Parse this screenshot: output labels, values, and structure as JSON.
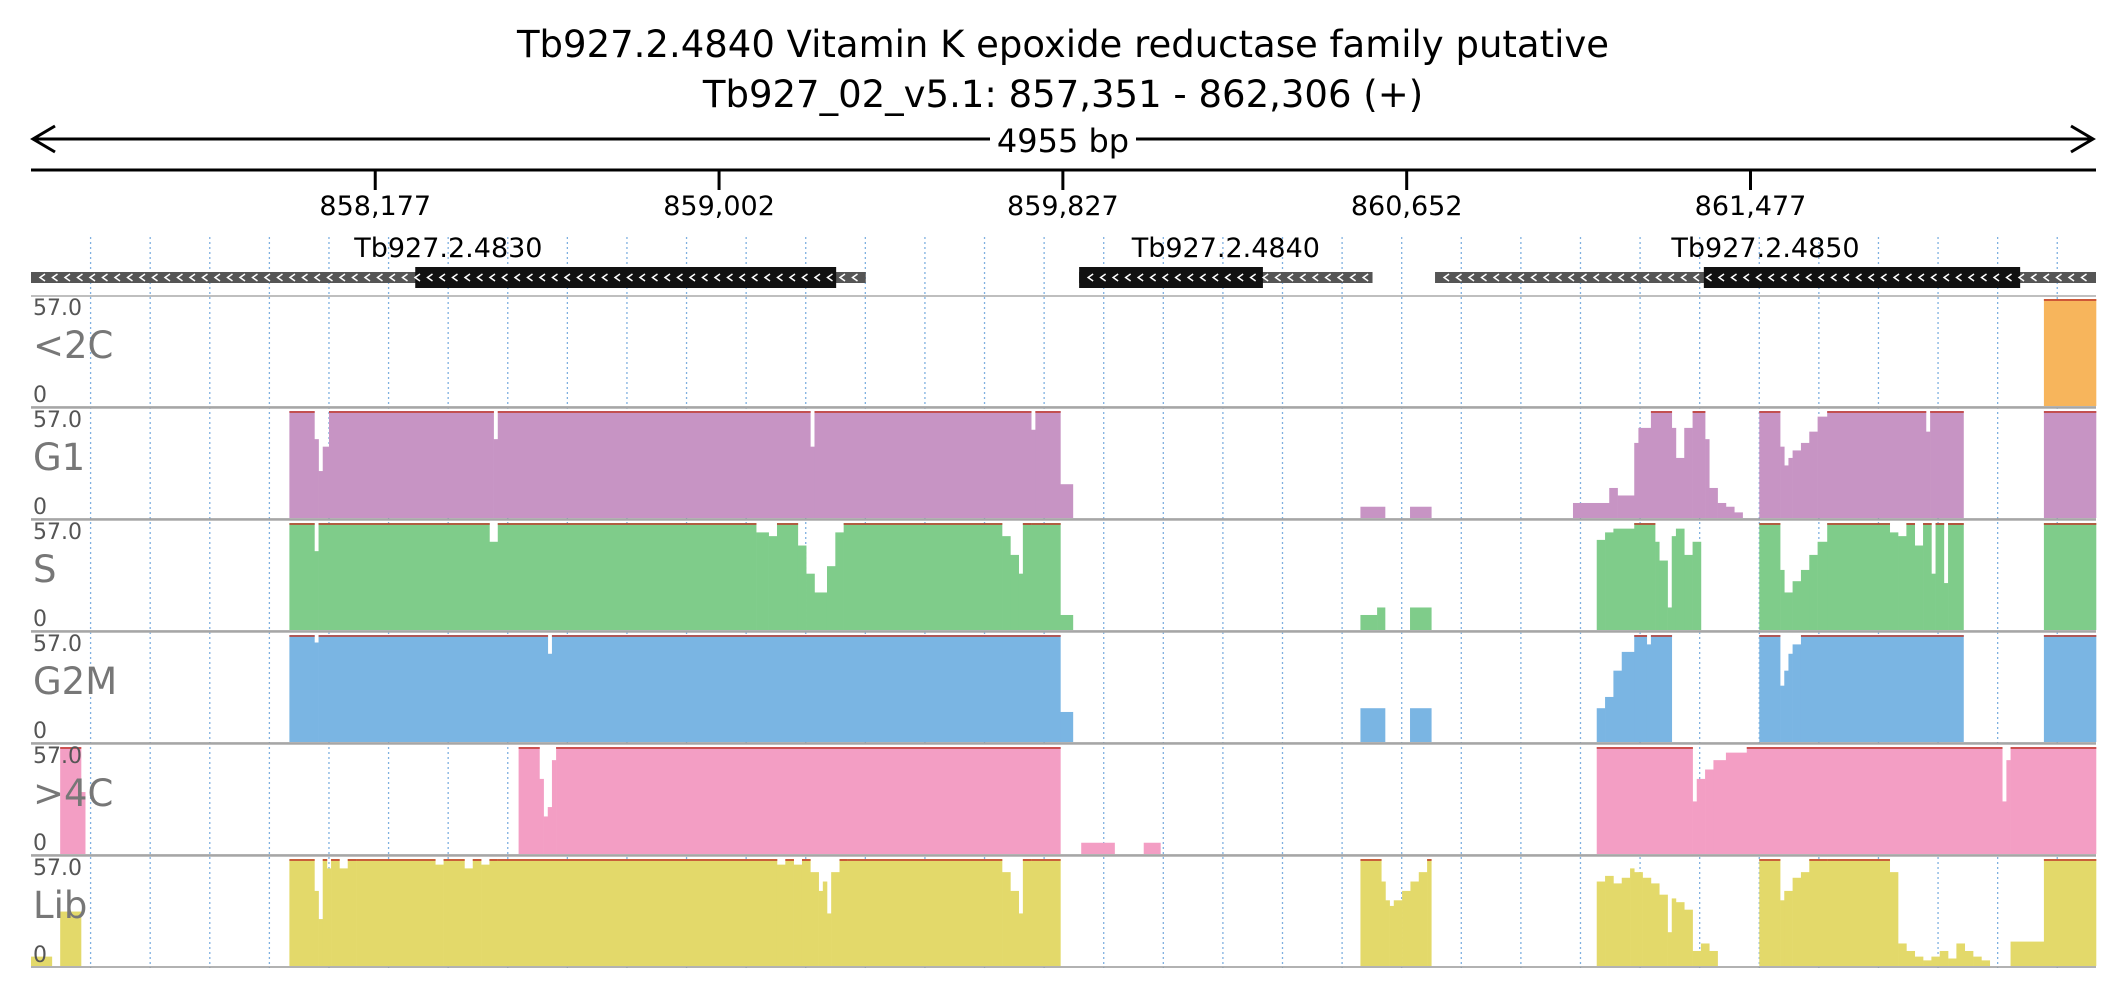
{
  "title": "Tb927.2.4840  Vitamin K epoxide reductase family  putative",
  "subtitle": "Tb927_02_v5.1: 857,351 - 862,306 (+)",
  "span_label": "4955 bp",
  "chart_data": {
    "type": "area",
    "xlim": [
      857351,
      862306
    ],
    "ticks": [
      858177,
      859002,
      859827,
      860652,
      861477
    ],
    "tick_labels": [
      "858,177",
      "859,002",
      "859,827",
      "860,652",
      "861,477"
    ],
    "gridlines": [
      857494,
      857637,
      857780,
      857923,
      858066,
      858209,
      858352,
      858495,
      858638,
      858781,
      858924,
      859067,
      859210,
      859353,
      859496,
      859639,
      859782,
      859925,
      860068,
      860211,
      860354,
      860497,
      860640,
      860783,
      860926,
      861069,
      861212,
      861355,
      861498,
      861641,
      861784,
      861927,
      862070,
      862213
    ],
    "genes": [
      {
        "name": "Tb927.2.4830",
        "start": 857351,
        "end": 859354,
        "cds_start": 858273,
        "cds_end": 859283,
        "strand": "-"
      },
      {
        "name": "Tb927.2.4840",
        "start": 859866,
        "end": 860570,
        "cds_start": 859866,
        "cds_end": 860307,
        "strand": "-"
      },
      {
        "name": "Tb927.2.4850",
        "start": 860720,
        "end": 862306,
        "cds_start": 861365,
        "cds_end": 862124,
        "strand": "-"
      }
    ],
    "y_max_label": "57.0",
    "y_min_label": "0",
    "ylim": [
      0,
      57.0
    ],
    "series": [
      {
        "name": "<2C",
        "color": "#f7b55c",
        "segments": [
          [
            862181,
            862306,
            57
          ]
        ]
      },
      {
        "name": "G1",
        "color": "#c794c4",
        "segments": [
          [
            857971,
            858031,
            57
          ],
          [
            858031,
            858041,
            42
          ],
          [
            858041,
            858051,
            25
          ],
          [
            858051,
            858066,
            38
          ],
          [
            858066,
            858461,
            57
          ],
          [
            858461,
            858471,
            42
          ],
          [
            858471,
            859221,
            57
          ],
          [
            859221,
            859231,
            38
          ],
          [
            859231,
            859751,
            57
          ],
          [
            859751,
            859761,
            47
          ],
          [
            859761,
            859821,
            57
          ],
          [
            859821,
            859851,
            18
          ],
          [
            860541,
            860600,
            6
          ],
          [
            860660,
            860711,
            6
          ],
          [
            861051,
            861138,
            8
          ],
          [
            861138,
            861158,
            16
          ],
          [
            861158,
            861198,
            12
          ],
          [
            861198,
            861208,
            40
          ],
          [
            861208,
            861238,
            48
          ],
          [
            861238,
            861288,
            57
          ],
          [
            861288,
            861298,
            48
          ],
          [
            861298,
            861318,
            32
          ],
          [
            861318,
            861338,
            48
          ],
          [
            861338,
            861368,
            57
          ],
          [
            861368,
            861378,
            42
          ],
          [
            861378,
            861398,
            16
          ],
          [
            861398,
            861418,
            8
          ],
          [
            861418,
            861438,
            6
          ],
          [
            861438,
            861458,
            3
          ],
          [
            861498,
            861548,
            57
          ],
          [
            861548,
            861558,
            38
          ],
          [
            861558,
            861568,
            28
          ],
          [
            861568,
            861578,
            32
          ],
          [
            861578,
            861598,
            36
          ],
          [
            861598,
            861618,
            40
          ],
          [
            861618,
            861638,
            46
          ],
          [
            861638,
            861661,
            54
          ],
          [
            861661,
            861898,
            57
          ],
          [
            861898,
            861908,
            46
          ],
          [
            861908,
            861988,
            57
          ],
          [
            862181,
            862306,
            57
          ]
        ]
      },
      {
        "name": "S",
        "color": "#7fcc8a",
        "segments": [
          [
            857971,
            858031,
            57
          ],
          [
            858031,
            858041,
            42
          ],
          [
            858041,
            858451,
            57
          ],
          [
            858451,
            858471,
            47
          ],
          [
            858471,
            859091,
            57
          ],
          [
            859091,
            859121,
            52
          ],
          [
            859121,
            859141,
            50
          ],
          [
            859141,
            859191,
            57
          ],
          [
            859191,
            859211,
            45
          ],
          [
            859211,
            859231,
            30
          ],
          [
            859231,
            859261,
            20
          ],
          [
            859261,
            859281,
            34
          ],
          [
            859281,
            859301,
            52
          ],
          [
            859301,
            859681,
            57
          ],
          [
            859681,
            859701,
            50
          ],
          [
            859701,
            859721,
            40
          ],
          [
            859721,
            859731,
            30
          ],
          [
            859731,
            859751,
            57
          ],
          [
            859751,
            859821,
            57
          ],
          [
            859821,
            859851,
            8
          ],
          [
            860541,
            860581,
            8
          ],
          [
            860581,
            860600,
            12
          ],
          [
            860660,
            860711,
            12
          ],
          [
            861108,
            861128,
            48
          ],
          [
            861128,
            861148,
            52
          ],
          [
            861148,
            861198,
            54
          ],
          [
            861198,
            861248,
            57
          ],
          [
            861248,
            861258,
            47
          ],
          [
            861258,
            861278,
            37
          ],
          [
            861278,
            861288,
            12
          ],
          [
            861288,
            861298,
            50
          ],
          [
            861298,
            861318,
            54
          ],
          [
            861318,
            861338,
            40
          ],
          [
            861338,
            861358,
            47
          ],
          [
            861498,
            861548,
            57
          ],
          [
            861548,
            861558,
            32
          ],
          [
            861558,
            861578,
            20
          ],
          [
            861578,
            861598,
            26
          ],
          [
            861598,
            861618,
            32
          ],
          [
            861618,
            861638,
            40
          ],
          [
            861638,
            861661,
            47
          ],
          [
            861661,
            861811,
            57
          ],
          [
            861811,
            861831,
            52
          ],
          [
            861831,
            861851,
            50
          ],
          [
            861851,
            861871,
            57
          ],
          [
            861871,
            861891,
            45
          ],
          [
            861891,
            861911,
            57
          ],
          [
            861911,
            861921,
            30
          ],
          [
            861921,
            861941,
            57
          ],
          [
            861941,
            861951,
            25
          ],
          [
            861951,
            861988,
            57
          ],
          [
            862181,
            862306,
            57
          ]
        ]
      },
      {
        "name": "G2M",
        "color": "#7ab5e3",
        "segments": [
          [
            857971,
            858031,
            57
          ],
          [
            858031,
            858041,
            53
          ],
          [
            858041,
            858591,
            57
          ],
          [
            858591,
            858601,
            47
          ],
          [
            858601,
            859821,
            57
          ],
          [
            859821,
            859851,
            16
          ],
          [
            860541,
            860600,
            18
          ],
          [
            860660,
            860711,
            18
          ],
          [
            861108,
            861128,
            18
          ],
          [
            861128,
            861148,
            24
          ],
          [
            861148,
            861168,
            38
          ],
          [
            861168,
            861198,
            48
          ],
          [
            861198,
            861228,
            57
          ],
          [
            861228,
            861238,
            52
          ],
          [
            861238,
            861288,
            57
          ],
          [
            861498,
            861548,
            57
          ],
          [
            861548,
            861558,
            30
          ],
          [
            861558,
            861568,
            38
          ],
          [
            861568,
            861578,
            47
          ],
          [
            861578,
            861598,
            52
          ],
          [
            861598,
            861988,
            57
          ],
          [
            862181,
            862306,
            57
          ]
        ]
      },
      {
        "name": ">4C",
        "color": "#f39ec4",
        "segments": [
          [
            857421,
            857471,
            57
          ],
          [
            857471,
            857481,
            33
          ],
          [
            858521,
            858571,
            57
          ],
          [
            858571,
            858581,
            40
          ],
          [
            858581,
            858591,
            20
          ],
          [
            858591,
            858601,
            25
          ],
          [
            858601,
            858611,
            50
          ],
          [
            858611,
            859821,
            57
          ],
          [
            859871,
            859951,
            6
          ],
          [
            860021,
            860061,
            6
          ],
          [
            861108,
            861338,
            57
          ],
          [
            861338,
            861348,
            28
          ],
          [
            861348,
            861368,
            40
          ],
          [
            861368,
            861388,
            45
          ],
          [
            861388,
            861418,
            50
          ],
          [
            861418,
            861468,
            54
          ],
          [
            861468,
            862081,
            57
          ],
          [
            862081,
            862091,
            28
          ],
          [
            862091,
            862101,
            50
          ],
          [
            862101,
            862306,
            57
          ]
        ]
      },
      {
        "name": "Lib",
        "color": "#e3d96a",
        "segments": [
          [
            857351,
            857401,
            5
          ],
          [
            857421,
            857471,
            29
          ],
          [
            857971,
            858031,
            57
          ],
          [
            858031,
            858041,
            40
          ],
          [
            858041,
            858051,
            25
          ],
          [
            858051,
            858061,
            57
          ],
          [
            858061,
            858071,
            52
          ],
          [
            858071,
            858091,
            57
          ],
          [
            858091,
            858111,
            52
          ],
          [
            858111,
            858131,
            57
          ],
          [
            858131,
            858321,
            57
          ],
          [
            858321,
            858341,
            54
          ],
          [
            858341,
            858391,
            57
          ],
          [
            858391,
            858411,
            52
          ],
          [
            858411,
            858431,
            57
          ],
          [
            858431,
            858451,
            54
          ],
          [
            858451,
            858471,
            57
          ],
          [
            858471,
            859141,
            57
          ],
          [
            859141,
            859161,
            54
          ],
          [
            859161,
            859181,
            57
          ],
          [
            859181,
            859201,
            54
          ],
          [
            859201,
            859221,
            57
          ],
          [
            859221,
            859241,
            50
          ],
          [
            859241,
            859251,
            40
          ],
          [
            859251,
            859261,
            45
          ],
          [
            859261,
            859271,
            28
          ],
          [
            859271,
            859291,
            50
          ],
          [
            859291,
            859311,
            57
          ],
          [
            859311,
            859681,
            57
          ],
          [
            859681,
            859701,
            50
          ],
          [
            859701,
            859721,
            40
          ],
          [
            859721,
            859731,
            28
          ],
          [
            859731,
            859751,
            57
          ],
          [
            859751,
            859821,
            57
          ],
          [
            860541,
            860591,
            57
          ],
          [
            860591,
            860601,
            45
          ],
          [
            860601,
            860611,
            35
          ],
          [
            860611,
            860621,
            32
          ],
          [
            860621,
            860641,
            35
          ],
          [
            860641,
            860661,
            40
          ],
          [
            860661,
            860681,
            45
          ],
          [
            860681,
            860701,
            50
          ],
          [
            860701,
            860711,
            57
          ],
          [
            861108,
            861128,
            45
          ],
          [
            861128,
            861148,
            48
          ],
          [
            861148,
            861168,
            44
          ],
          [
            861168,
            861188,
            47
          ],
          [
            861188,
            861198,
            52
          ],
          [
            861198,
            861218,
            50
          ],
          [
            861218,
            861238,
            47
          ],
          [
            861238,
            861258,
            44
          ],
          [
            861258,
            861278,
            38
          ],
          [
            861278,
            861288,
            18
          ],
          [
            861288,
            861298,
            36
          ],
          [
            861298,
            861318,
            34
          ],
          [
            861318,
            861338,
            30
          ],
          [
            861338,
            861358,
            8
          ],
          [
            861358,
            861378,
            12
          ],
          [
            861378,
            861398,
            8
          ],
          [
            861498,
            861548,
            57
          ],
          [
            861548,
            861558,
            35
          ],
          [
            861558,
            861578,
            40
          ],
          [
            861578,
            861598,
            47
          ],
          [
            861598,
            861618,
            50
          ],
          [
            861618,
            861661,
            57
          ],
          [
            861661,
            861811,
            57
          ],
          [
            861811,
            861831,
            50
          ],
          [
            861831,
            861851,
            12
          ],
          [
            861851,
            861871,
            8
          ],
          [
            861871,
            861891,
            5
          ],
          [
            861891,
            861911,
            3
          ],
          [
            861911,
            861931,
            5
          ],
          [
            861931,
            861951,
            8
          ],
          [
            861951,
            861971,
            4
          ],
          [
            861971,
            861991,
            12
          ],
          [
            861991,
            862011,
            8
          ],
          [
            862011,
            862031,
            5
          ],
          [
            862031,
            862051,
            3
          ],
          [
            862101,
            862181,
            13
          ],
          [
            862181,
            862306,
            57
          ]
        ]
      }
    ]
  }
}
